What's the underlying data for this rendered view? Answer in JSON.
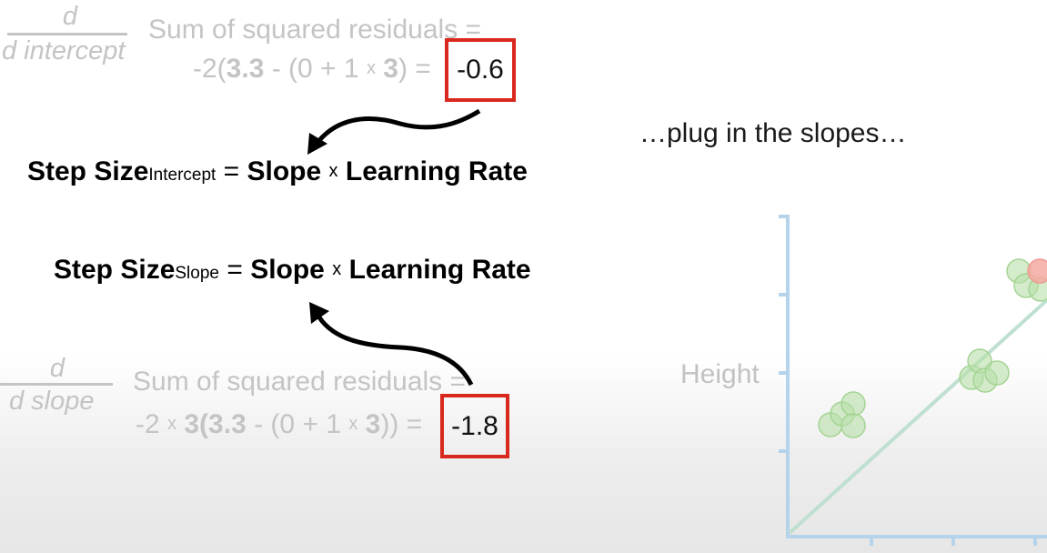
{
  "top_derivative": {
    "numerator": "d",
    "denominator": "d intercept",
    "label": "Sum of squared residuals =",
    "expr_parts": [
      "-2(",
      "3.3",
      " - (0 + 1 ",
      "x",
      " ",
      "3",
      ") = "
    ],
    "result": "-0.6"
  },
  "bottom_derivative": {
    "numerator": "d",
    "denominator": "d slope",
    "label": "Sum of squared residuals =",
    "expr_parts": [
      "-2 ",
      "x",
      " ",
      "3",
      "(",
      "3.3",
      " - (0 + 1 ",
      "x",
      " ",
      "3",
      ")) = "
    ],
    "result": "-1.8"
  },
  "formula_intercept": {
    "step_size": "Step Size",
    "subscript": "Intercept",
    "equals": " = ",
    "slope": "Slope",
    "times": "x",
    "learning_rate": "Learning Rate"
  },
  "formula_slope": {
    "step_size": "Step Size",
    "subscript": "Slope",
    "equals": " = ",
    "slope": "Slope",
    "times": "x",
    "learning_rate": "Learning Rate"
  },
  "caption": "…plug in the slopes…",
  "graph": {
    "ylabel": "Height",
    "colors": {
      "axis": "#b5d3ea",
      "point_green": "#b8e0a8",
      "point_red": "#f3a9a2",
      "line": "#bfe0d0"
    }
  },
  "colors": {
    "highlight_box": "#d9281d",
    "faded_text": "#c4c4c4",
    "arrow": "#000000"
  }
}
